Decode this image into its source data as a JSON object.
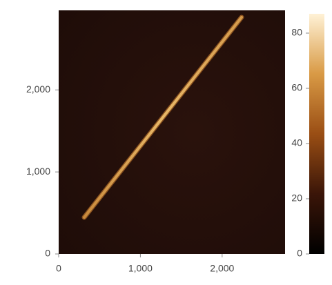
{
  "chart_data": {
    "type": "image",
    "xlim": [
      0,
      2770
    ],
    "ylim": [
      0,
      2970
    ],
    "xticks": [
      0,
      {
        "value": 1000,
        "label": "1,000"
      },
      {
        "value": 2000,
        "label": "2,000"
      }
    ],
    "yticks": [
      0,
      {
        "value": 1000,
        "label": "1,000"
      },
      {
        "value": 2000,
        "label": "2,000"
      }
    ],
    "colorbar": {
      "lim": [
        0,
        87
      ],
      "ticks": [
        0,
        20,
        40,
        60,
        80
      ],
      "colors": [
        "#000000",
        "#3a1508",
        "#9a4e14",
        "#d99a45",
        "#fff2d6"
      ]
    }
  }
}
